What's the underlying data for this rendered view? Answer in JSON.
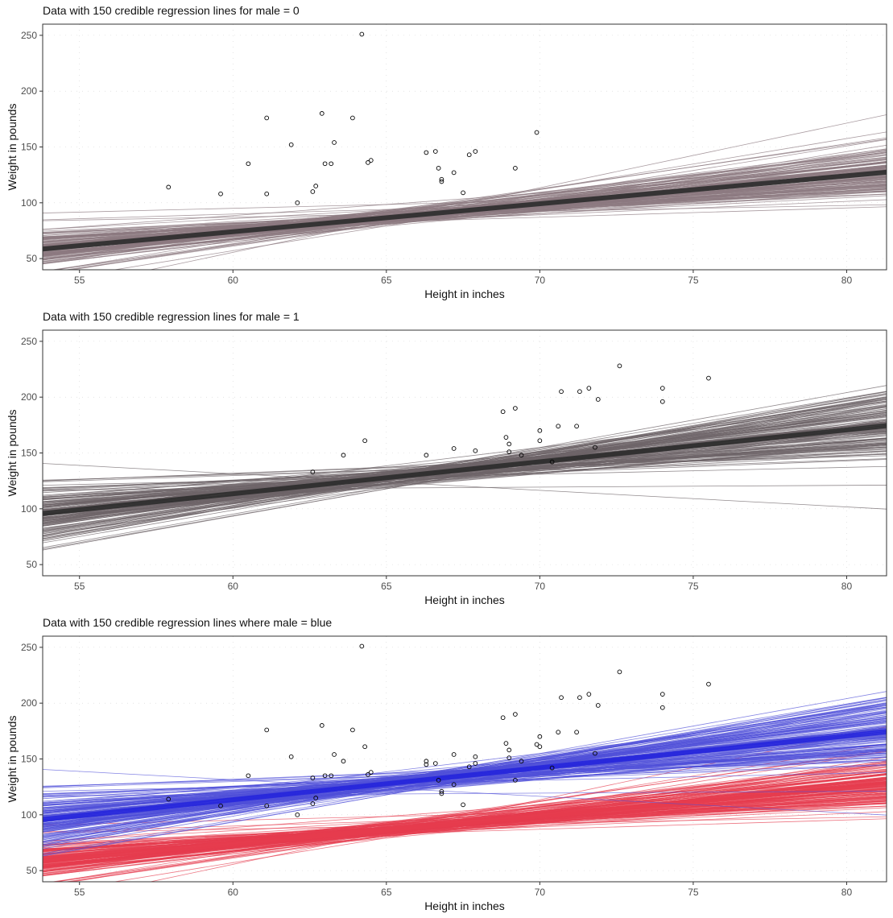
{
  "chart_data": [
    {
      "type": "scatter",
      "title": "Data with 150 credible regression lines for male = 0",
      "xlabel": "Height in inches",
      "ylabel": "Weight in pounds",
      "xlim": [
        53.8,
        81.3
      ],
      "ylim": [
        40,
        260
      ],
      "xticks": [
        55,
        60,
        65,
        70,
        75,
        80
      ],
      "yticks": [
        50,
        100,
        150,
        200,
        250
      ],
      "grid": "dotted",
      "points": [
        {
          "x": 57.9,
          "y": 114
        },
        {
          "x": 59.6,
          "y": 108
        },
        {
          "x": 60.5,
          "y": 135
        },
        {
          "x": 61.1,
          "y": 176
        },
        {
          "x": 61.1,
          "y": 108
        },
        {
          "x": 61.9,
          "y": 152
        },
        {
          "x": 62.1,
          "y": 100
        },
        {
          "x": 62.6,
          "y": 110
        },
        {
          "x": 62.7,
          "y": 115
        },
        {
          "x": 62.9,
          "y": 180
        },
        {
          "x": 63.0,
          "y": 135
        },
        {
          "x": 63.2,
          "y": 135
        },
        {
          "x": 63.3,
          "y": 154
        },
        {
          "x": 63.9,
          "y": 176
        },
        {
          "x": 64.2,
          "y": 251
        },
        {
          "x": 64.4,
          "y": 136
        },
        {
          "x": 64.5,
          "y": 138
        },
        {
          "x": 66.3,
          "y": 145
        },
        {
          "x": 66.6,
          "y": 146
        },
        {
          "x": 66.7,
          "y": 131
        },
        {
          "x": 66.8,
          "y": 121
        },
        {
          "x": 66.8,
          "y": 119
        },
        {
          "x": 67.2,
          "y": 127
        },
        {
          "x": 67.5,
          "y": 109
        },
        {
          "x": 67.7,
          "y": 143
        },
        {
          "x": 67.9,
          "y": 146
        },
        {
          "x": 69.2,
          "y": 131
        },
        {
          "x": 69.9,
          "y": 163
        }
      ],
      "regression": {
        "name": "male = 0",
        "n_lines": 150,
        "intercept_at_55": 62,
        "slope": 2.45,
        "color": "#2b2b2b",
        "line_color": "#8c7a80"
      }
    },
    {
      "type": "scatter",
      "title": "Data with 150 credible regression lines for male = 1",
      "xlabel": "Height in inches",
      "ylabel": "Weight in pounds",
      "xlim": [
        53.8,
        81.3
      ],
      "ylim": [
        40,
        260
      ],
      "xticks": [
        55,
        60,
        65,
        70,
        75,
        80
      ],
      "yticks": [
        50,
        100,
        150,
        200,
        250
      ],
      "grid": "dotted",
      "points": [
        {
          "x": 62.6,
          "y": 133
        },
        {
          "x": 63.6,
          "y": 148
        },
        {
          "x": 64.3,
          "y": 161
        },
        {
          "x": 66.3,
          "y": 148
        },
        {
          "x": 67.2,
          "y": 154
        },
        {
          "x": 67.9,
          "y": 152
        },
        {
          "x": 68.8,
          "y": 187
        },
        {
          "x": 68.9,
          "y": 164
        },
        {
          "x": 69.0,
          "y": 158
        },
        {
          "x": 69.0,
          "y": 151
        },
        {
          "x": 69.2,
          "y": 190
        },
        {
          "x": 69.4,
          "y": 148
        },
        {
          "x": 70.0,
          "y": 170
        },
        {
          "x": 70.0,
          "y": 161
        },
        {
          "x": 70.4,
          "y": 142
        },
        {
          "x": 70.6,
          "y": 174
        },
        {
          "x": 70.7,
          "y": 205
        },
        {
          "x": 71.2,
          "y": 174
        },
        {
          "x": 71.3,
          "y": 205
        },
        {
          "x": 71.6,
          "y": 208
        },
        {
          "x": 71.8,
          "y": 155
        },
        {
          "x": 71.9,
          "y": 198
        },
        {
          "x": 72.6,
          "y": 228
        },
        {
          "x": 74.0,
          "y": 208
        },
        {
          "x": 74.0,
          "y": 196
        },
        {
          "x": 75.5,
          "y": 217
        }
      ],
      "regression": {
        "name": "male = 1",
        "n_lines": 150,
        "intercept_at_55": 98,
        "slope": 3.0,
        "color": "#2b2b2b",
        "line_color": "#6e6468"
      }
    },
    {
      "type": "scatter",
      "title": "Data with 150 credible regression lines where male = blue",
      "xlabel": "Height in inches",
      "ylabel": "Weight in pounds",
      "xlim": [
        53.8,
        81.3
      ],
      "ylim": [
        40,
        260
      ],
      "xticks": [
        55,
        60,
        65,
        70,
        75,
        80
      ],
      "yticks": [
        50,
        100,
        150,
        200,
        250
      ],
      "grid": "dotted",
      "points_from_panels": [
        0,
        1
      ],
      "regression_groups": [
        {
          "from_panel": 0,
          "color": "#e63c4e",
          "line_color": "#e63c4e"
        },
        {
          "from_panel": 1,
          "color": "#2525dc",
          "line_color": "#5050d8"
        }
      ]
    }
  ]
}
